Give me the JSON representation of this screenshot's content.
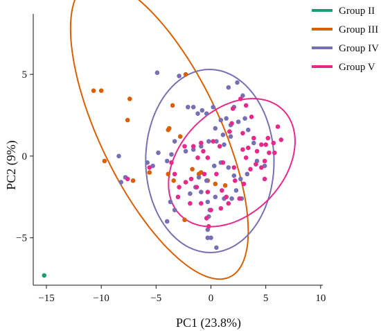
{
  "chart_data": {
    "type": "scatter",
    "title": "",
    "xlabel": "PC1 (23.8%)",
    "ylabel": "PC2 (9%)",
    "xlim": [
      -16.2,
      10.2
    ],
    "ylim": [
      -7.9,
      8.7
    ],
    "xticks": [
      -15,
      -10,
      -5,
      0,
      5,
      10
    ],
    "yticks": [
      -5,
      0,
      5
    ],
    "grid": false,
    "legend_position": "top-right",
    "series": [
      {
        "name": "Group II",
        "color": "#1b9e77",
        "points": [
          [
            -15.2,
            -7.3
          ]
        ]
      },
      {
        "name": "Group III",
        "color": "#d95f02",
        "ellipse": {
          "cx": -4.7,
          "cy": 1.6,
          "rx": 11.2,
          "ry": 4.85,
          "angle_deg": -50
        },
        "points": [
          [
            -10.7,
            4.0
          ],
          [
            -10.0,
            4.0
          ],
          [
            -7.4,
            3.5
          ],
          [
            -7.6,
            2.2
          ],
          [
            -9.7,
            -0.3
          ],
          [
            -7.1,
            -1.5
          ],
          [
            -5.6,
            -1.0
          ],
          [
            -3.9,
            1.6
          ],
          [
            -3.8,
            1.7
          ],
          [
            -3.5,
            3.1
          ],
          [
            -2.8,
            1.2
          ],
          [
            -2.3,
            5.0
          ],
          [
            -3.9,
            -1.1
          ],
          [
            -2.4,
            -3.9
          ],
          [
            -1.7,
            -0.8
          ],
          [
            -1.1,
            -1.1
          ],
          [
            -0.9,
            -1.0
          ],
          [
            -0.3,
            -1.5
          ],
          [
            0.4,
            -1.7
          ],
          [
            1.3,
            -1.8
          ],
          [
            -3.4,
            -1.5
          ]
        ]
      },
      {
        "name": "Group IV",
        "color": "#7570b3",
        "ellipse": {
          "cx": -0.1,
          "cy": -0.3,
          "rx": 5.85,
          "ry": 5.6,
          "angle_deg": -4
        },
        "points": [
          [
            -4.9,
            5.1
          ],
          [
            -2.9,
            4.9
          ],
          [
            -2.1,
            3.0
          ],
          [
            -1.6,
            3.0
          ],
          [
            -1.2,
            2.6
          ],
          [
            -0.8,
            2.8
          ],
          [
            -0.4,
            2.6
          ],
          [
            0.2,
            3.0
          ],
          [
            1.6,
            4.2
          ],
          [
            2.4,
            4.5
          ],
          [
            2.9,
            3.7
          ],
          [
            2.1,
            3.0
          ],
          [
            1.4,
            2.3
          ],
          [
            0.9,
            2.2
          ],
          [
            0.4,
            1.7
          ],
          [
            1.8,
            1.9
          ],
          [
            2.5,
            2.1
          ],
          [
            3.1,
            2.3
          ],
          [
            3.4,
            1.6
          ],
          [
            1.8,
            1.2
          ],
          [
            1.2,
            0.7
          ],
          [
            0.5,
            0.9
          ],
          [
            -0.2,
            0.9
          ],
          [
            -0.9,
            0.6
          ],
          [
            -1.6,
            0.4
          ],
          [
            -2.3,
            0.3
          ],
          [
            -3.3,
            0.9
          ],
          [
            -3.6,
            0.1
          ],
          [
            -4.0,
            -0.3
          ],
          [
            -4.8,
            0.2
          ],
          [
            -5.3,
            -0.6
          ],
          [
            -5.8,
            -0.4
          ],
          [
            -7.8,
            -1.3
          ],
          [
            -8.2,
            -1.6
          ],
          [
            -8.4,
            0.0
          ],
          [
            -3.7,
            -2.8
          ],
          [
            -3.3,
            -3.3
          ],
          [
            -1.9,
            -2.3
          ],
          [
            -0.4,
            -1.5
          ],
          [
            -1.1,
            -1.3
          ],
          [
            0.3,
            -0.6
          ],
          [
            0.9,
            -0.4
          ],
          [
            1.6,
            -0.7
          ],
          [
            2.1,
            -1.2
          ],
          [
            2.3,
            -2.1
          ],
          [
            2.8,
            -2.6
          ],
          [
            1.9,
            -2.6
          ],
          [
            1.2,
            -2.6
          ],
          [
            0.4,
            -2.5
          ],
          [
            -0.3,
            -2.8
          ],
          [
            -0.1,
            -3.3
          ],
          [
            -0.2,
            -3.7
          ],
          [
            -0.3,
            -4.5
          ],
          [
            -4.0,
            -4.0
          ],
          [
            0.0,
            -5.0
          ],
          [
            -0.3,
            -5.0
          ],
          [
            0.5,
            -5.6
          ],
          [
            -1.4,
            -1.9
          ],
          [
            -0.9,
            -2.2
          ],
          [
            4.2,
            -0.3
          ],
          [
            3.9,
            0.8
          ],
          [
            4.9,
            -0.6
          ],
          [
            3.3,
            -1.1
          ],
          [
            1.1,
            1.3
          ],
          [
            2.7,
            -1.4
          ]
        ]
      },
      {
        "name": "Group V",
        "color": "#e7298a",
        "ellipse": {
          "cx": 1.9,
          "cy": -0.4,
          "rx": 6.0,
          "ry": 3.55,
          "angle_deg": 20
        },
        "points": [
          [
            3.2,
            3.1
          ],
          [
            2.7,
            3.5
          ],
          [
            2.0,
            2.9
          ],
          [
            1.9,
            2.0
          ],
          [
            3.7,
            2.4
          ],
          [
            1.7,
            1.5
          ],
          [
            2.9,
            1.4
          ],
          [
            0.8,
            0.6
          ],
          [
            0.2,
            0.9
          ],
          [
            -0.9,
            0.8
          ],
          [
            -1.6,
            0.6
          ],
          [
            -0.7,
            0.3
          ],
          [
            -0.3,
            -0.1
          ],
          [
            -1.2,
            -0.1
          ],
          [
            -2.4,
            0.6
          ],
          [
            -3.6,
            -0.4
          ],
          [
            -5.6,
            -0.7
          ],
          [
            -7.6,
            -1.4
          ],
          [
            -3.3,
            -1.1
          ],
          [
            -2.9,
            -1.9
          ],
          [
            -3.0,
            -2.5
          ],
          [
            -2.3,
            -1.6
          ],
          [
            -1.8,
            -1.4
          ],
          [
            -1.3,
            -1.9
          ],
          [
            -0.6,
            -1.1
          ],
          [
            -0.3,
            -2.2
          ],
          [
            0.5,
            -1.1
          ],
          [
            1.0,
            -2.1
          ],
          [
            1.4,
            -2.5
          ],
          [
            2.2,
            -1.5
          ],
          [
            3.0,
            -1.7
          ],
          [
            2.6,
            -2.6
          ],
          [
            1.6,
            -2.9
          ],
          [
            0.9,
            -3.2
          ],
          [
            0.0,
            -3.3
          ],
          [
            -0.4,
            -3.8
          ],
          [
            -0.2,
            -4.3
          ],
          [
            -0.9,
            -2.9
          ],
          [
            -1.9,
            -2.9
          ],
          [
            2.9,
            0.4
          ],
          [
            3.4,
            0.5
          ],
          [
            3.2,
            -0.1
          ],
          [
            3.6,
            -0.8
          ],
          [
            4.2,
            0.3
          ],
          [
            4.6,
            0.7
          ],
          [
            5.0,
            0.7
          ],
          [
            5.2,
            1.1
          ],
          [
            5.7,
            0.8
          ],
          [
            5.3,
            0.2
          ],
          [
            4.9,
            -0.3
          ],
          [
            4.6,
            -0.7
          ],
          [
            4.1,
            -0.5
          ],
          [
            5.8,
            0.2
          ],
          [
            6.1,
            1.8
          ],
          [
            6.4,
            1.0
          ],
          [
            4.9,
            -1.4
          ],
          [
            2.1,
            -0.7
          ],
          [
            1.1,
            -0.4
          ],
          [
            3.9,
            1.1
          ]
        ]
      }
    ]
  }
}
